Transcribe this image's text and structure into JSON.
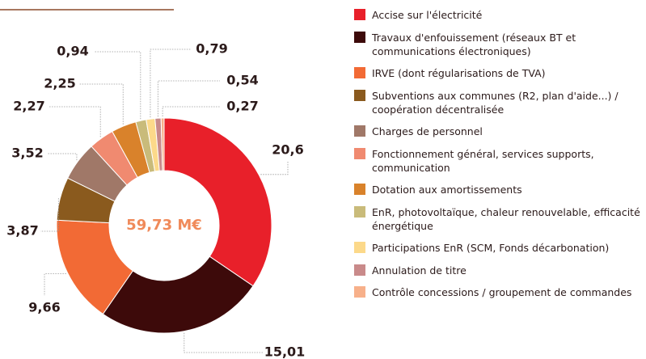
{
  "chart_data": {
    "type": "donut",
    "center_label": "59,73 M€",
    "categories": [
      "Accise sur l'électricité",
      "Travaux d'enfouissement (réseaux BT et communications électroniques)",
      "IRVE (dont régularisations de TVA)",
      "Subventions aux communes (R2, plan d'aide...) / coopération décentralisée",
      "Charges de personnel",
      "Fonctionnement général, services supports, communication",
      "Dotation aux amortissements",
      "EnR, photovoltaïque, chaleur renouvelable, efficacité énergétique",
      "Participations EnR (SCM, Fonds décarbonation)",
      "Annulation de titre",
      "Contrôle concessions / groupement de commandes"
    ],
    "values": [
      20.6,
      15.01,
      9.66,
      3.87,
      3.52,
      2.27,
      2.25,
      0.94,
      0.79,
      0.54,
      0.27
    ],
    "value_labels": [
      "20,6",
      "15,01",
      "9,66",
      "3,87",
      "3,52",
      "2,27",
      "2,25",
      "0,94",
      "0,79",
      "0,54",
      "0,27"
    ],
    "colors": [
      "#e8202a",
      "#3d0a0a",
      "#f26a35",
      "#8a5a1e",
      "#a07868",
      "#f08a70",
      "#d9822b",
      "#c9bb7a",
      "#fcd98a",
      "#c98a8a",
      "#f7b08a"
    ],
    "legend": "right"
  }
}
